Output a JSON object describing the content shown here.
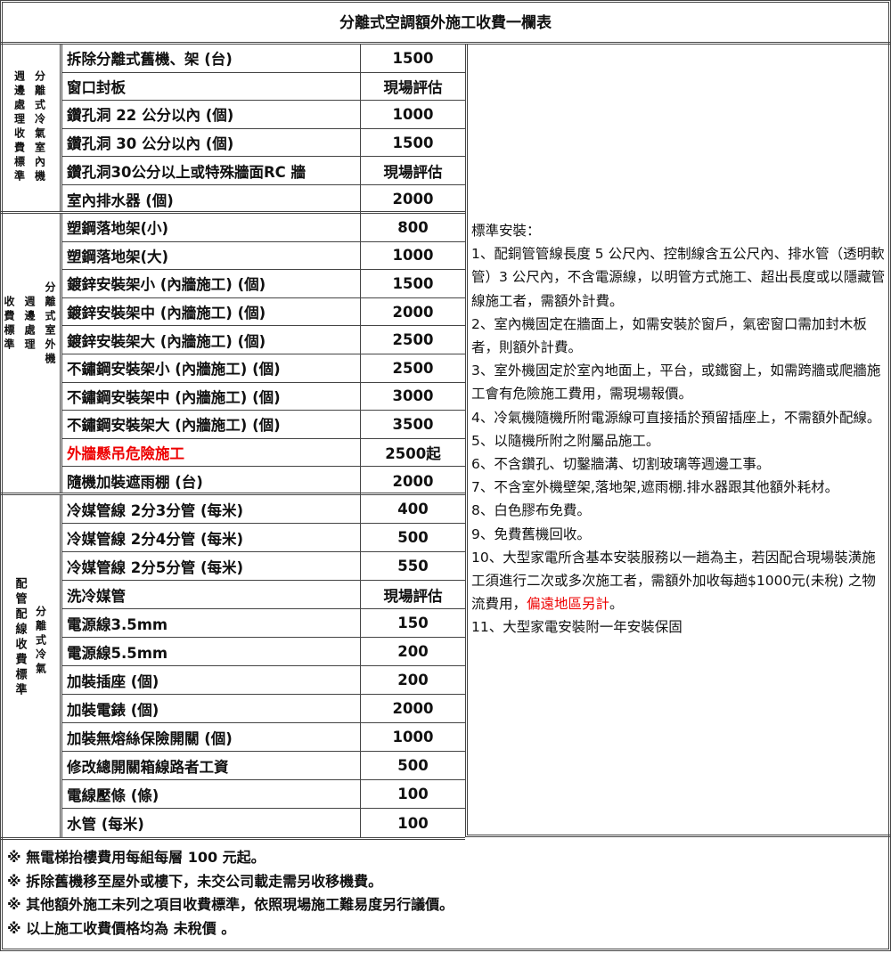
{
  "title": "分離式空調額外施工收費一欄表",
  "sections": [
    {
      "label_columns": [
        "週邊處理收費標準",
        "分離式冷氣室內機"
      ],
      "rows": [
        {
          "item": "拆除分離式舊機、架 (台)",
          "price": "1500"
        },
        {
          "item": "窗口封板",
          "price": "現場評估"
        },
        {
          "item": "鑽孔洞 22 公分以內 (個)",
          "price": "1000"
        },
        {
          "item": "鑽孔洞 30 公分以內 (個)",
          "price": "1500"
        },
        {
          "item": "鑽孔洞30公分以上或特殊牆面RC 牆",
          "price": "現場評估"
        },
        {
          "item": "室內排水器 (個)",
          "price": "2000"
        }
      ]
    },
    {
      "label_columns": [
        "收費標準",
        "週邊處理",
        "分離式室外機"
      ],
      "rows": [
        {
          "item": "塑鋼落地架(小)",
          "price": "800"
        },
        {
          "item": "塑鋼落地架(大)",
          "price": "1000"
        },
        {
          "item": "鍍鋅安裝架小 (內牆施工) (個)",
          "price": "1500"
        },
        {
          "item": "鍍鋅安裝架中 (內牆施工) (個)",
          "price": "2000"
        },
        {
          "item": "鍍鋅安裝架大 (內牆施工) (個)",
          "price": "2500"
        },
        {
          "item": "不鏽鋼安裝架小 (內牆施工) (個)",
          "price": "2500"
        },
        {
          "item": "不鏽鋼安裝架中 (內牆施工) (個)",
          "price": "3000"
        },
        {
          "item": "不鏽鋼安裝架大 (內牆施工) (個)",
          "price": "3500"
        },
        {
          "item": "外牆懸吊危險施工",
          "price": "2500起",
          "highlight": true
        },
        {
          "item": "隨機加裝遮雨棚 (台)",
          "price": "2000"
        }
      ]
    },
    {
      "label_columns": [
        "配管配線收費標準",
        "分離式冷氣"
      ],
      "rows": [
        {
          "item": "冷媒管線 2分3分管 (每米)",
          "price": "400"
        },
        {
          "item": "冷媒管線 2分4分管 (每米)",
          "price": "500"
        },
        {
          "item": "冷媒管線 2分5分管 (每米)",
          "price": "550"
        },
        {
          "item": "洗冷媒管",
          "price": "現場評估"
        },
        {
          "item": "電源線3.5mm",
          "price": "150"
        },
        {
          "item": "電源線5.5mm",
          "price": "200"
        },
        {
          "item": "加裝插座 (個)",
          "price": "200"
        },
        {
          "item": "加裝電錶 (個)",
          "price": "2000"
        },
        {
          "item": "加裝無熔絲保險開關 (個)",
          "price": "1000"
        },
        {
          "item": "修改總開關箱線路者工資",
          "price": "500"
        },
        {
          "item": "電線壓條 (條)",
          "price": "100"
        },
        {
          "item": "水管 (每米)",
          "price": "100"
        }
      ]
    }
  ],
  "notes": {
    "heading": "標準安裝：",
    "items": [
      "1、配銅管管線長度 5 公尺內、控制線含五公尺內、排水管（透明軟管）3 公尺內，不含電源線，以明管方式施工、超出長度或以隱藏管線施工者，需額外計費。",
      "2、室內機固定在牆面上，如需安裝於窗戶，氣密窗口需加封木板者，則額外計費。",
      "3、室外機固定於室內地面上，平台，或鐵窗上，如需跨牆或爬牆施工會有危險施工費用，需現場報價。",
      "4、冷氣機隨機所附電源線可直接插於預留插座上，不需額外配線。",
      "5、以隨機所附之附屬品施工。",
      "6、不含鑽孔、切鑿牆溝、切割玻璃等週邊工事。",
      "7、不含室外機壁架,落地架,遮雨棚.排水器跟其他額外耗材。",
      "8、白色膠布免費。",
      "9、免費舊機回收。"
    ],
    "item10": "10、大型家電所含基本安裝服務以一趟為主，若因配合現場裝潢施工須進行二次或多次施工者，需額外加收每趟$1000元(未稅) 之物流費用，",
    "item10_red": "偏遠地區另計",
    "item10_end": "。",
    "item11": "11、大型家電安裝附一年安裝保固"
  },
  "footer": [
    "※ 無電梯抬樓費用每組每層 100 元起。",
    "※ 拆除舊機移至屋外或樓下，未交公司載走需另收移機費。",
    "※ 其他額外施工未列之項目收費標準，依照現場施工難易度另行議價。",
    "※ 以上施工收費價格均為 未稅價 。"
  ],
  "colors": {
    "highlight": "#e00000",
    "border": "#444444"
  }
}
